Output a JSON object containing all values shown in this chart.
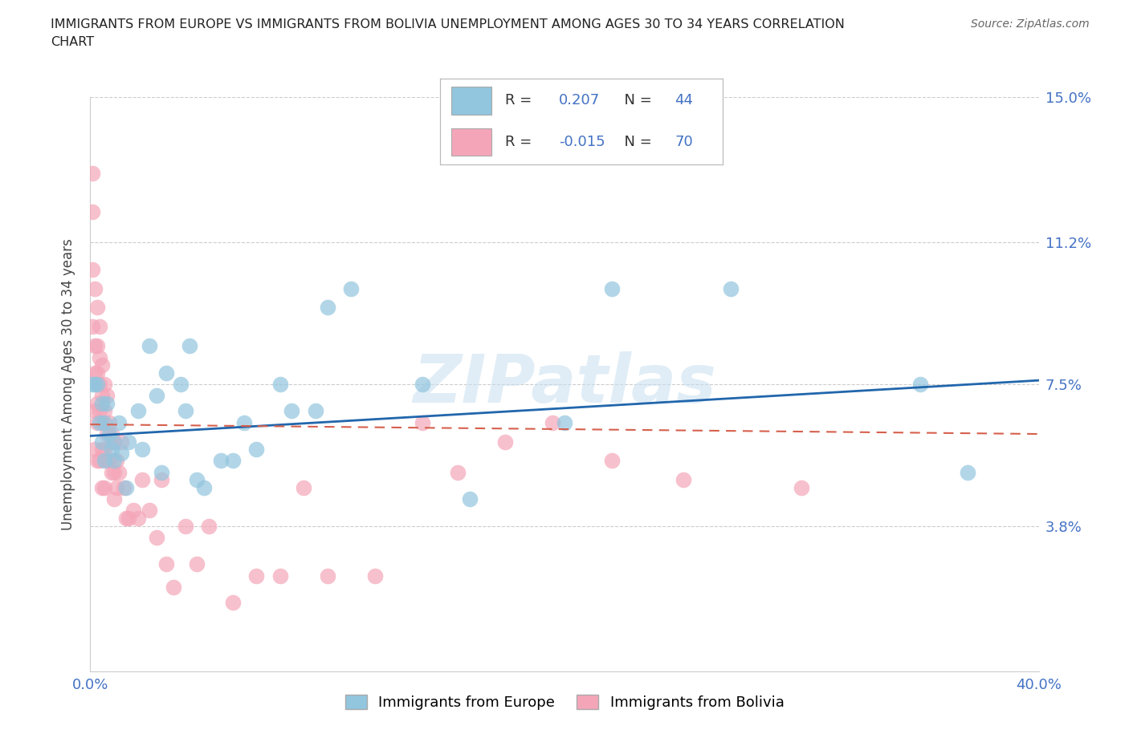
{
  "title_line1": "IMMIGRANTS FROM EUROPE VS IMMIGRANTS FROM BOLIVIA UNEMPLOYMENT AMONG AGES 30 TO 34 YEARS CORRELATION",
  "title_line2": "CHART",
  "source": "Source: ZipAtlas.com",
  "ylabel": "Unemployment Among Ages 30 to 34 years",
  "xlim": [
    0.0,
    0.4
  ],
  "ylim": [
    0.0,
    0.15
  ],
  "xticks": [
    0.0,
    0.08,
    0.16,
    0.24,
    0.32,
    0.4
  ],
  "xticklabels": [
    "0.0%",
    "",
    "",
    "",
    "",
    "40.0%"
  ],
  "ytick_positions": [
    0.038,
    0.075,
    0.112,
    0.15
  ],
  "ytick_labels": [
    "3.8%",
    "7.5%",
    "11.2%",
    "15.0%"
  ],
  "europe_R": "0.207",
  "europe_N": "44",
  "bolivia_R": "-0.015",
  "bolivia_N": "70",
  "europe_color": "#92c5de",
  "bolivia_color": "#f4a6b8",
  "europe_line_color": "#2166ac",
  "bolivia_line_color": "#d6604d",
  "watermark": "ZIPatlas",
  "europe_line_x": [
    0.0,
    0.4
  ],
  "europe_line_y": [
    0.0615,
    0.076
  ],
  "bolivia_line_x": [
    0.0,
    0.4
  ],
  "bolivia_line_y": [
    0.0645,
    0.062
  ],
  "europe_x": [
    0.001,
    0.002,
    0.003,
    0.004,
    0.005,
    0.005,
    0.006,
    0.006,
    0.007,
    0.008,
    0.009,
    0.01,
    0.01,
    0.012,
    0.013,
    0.015,
    0.016,
    0.02,
    0.022,
    0.025,
    0.028,
    0.03,
    0.032,
    0.038,
    0.04,
    0.042,
    0.045,
    0.048,
    0.055,
    0.06,
    0.065,
    0.07,
    0.08,
    0.085,
    0.095,
    0.1,
    0.11,
    0.14,
    0.16,
    0.2,
    0.22,
    0.27,
    0.35,
    0.37
  ],
  "europe_y": [
    0.075,
    0.075,
    0.075,
    0.065,
    0.07,
    0.06,
    0.055,
    0.065,
    0.07,
    0.062,
    0.058,
    0.055,
    0.06,
    0.065,
    0.057,
    0.048,
    0.06,
    0.068,
    0.058,
    0.085,
    0.072,
    0.052,
    0.078,
    0.075,
    0.068,
    0.085,
    0.05,
    0.048,
    0.055,
    0.055,
    0.065,
    0.058,
    0.075,
    0.068,
    0.068,
    0.095,
    0.1,
    0.075,
    0.045,
    0.065,
    0.1,
    0.1,
    0.075,
    0.052
  ],
  "bolivia_x": [
    0.001,
    0.001,
    0.001,
    0.001,
    0.002,
    0.002,
    0.002,
    0.002,
    0.002,
    0.003,
    0.003,
    0.003,
    0.003,
    0.003,
    0.003,
    0.004,
    0.004,
    0.004,
    0.004,
    0.004,
    0.005,
    0.005,
    0.005,
    0.005,
    0.005,
    0.006,
    0.006,
    0.006,
    0.006,
    0.007,
    0.007,
    0.007,
    0.008,
    0.008,
    0.009,
    0.009,
    0.01,
    0.01,
    0.01,
    0.011,
    0.011,
    0.012,
    0.013,
    0.014,
    0.015,
    0.016,
    0.018,
    0.02,
    0.022,
    0.025,
    0.028,
    0.03,
    0.032,
    0.035,
    0.04,
    0.045,
    0.05,
    0.06,
    0.07,
    0.08,
    0.09,
    0.1,
    0.12,
    0.14,
    0.155,
    0.175,
    0.195,
    0.22,
    0.25,
    0.3
  ],
  "bolivia_y": [
    0.13,
    0.12,
    0.105,
    0.09,
    0.1,
    0.085,
    0.078,
    0.068,
    0.058,
    0.095,
    0.085,
    0.078,
    0.07,
    0.065,
    0.055,
    0.09,
    0.082,
    0.075,
    0.068,
    0.055,
    0.08,
    0.072,
    0.065,
    0.058,
    0.048,
    0.075,
    0.068,
    0.058,
    0.048,
    0.072,
    0.062,
    0.055,
    0.065,
    0.055,
    0.062,
    0.052,
    0.06,
    0.052,
    0.045,
    0.055,
    0.048,
    0.052,
    0.06,
    0.048,
    0.04,
    0.04,
    0.042,
    0.04,
    0.05,
    0.042,
    0.035,
    0.05,
    0.028,
    0.022,
    0.038,
    0.028,
    0.038,
    0.018,
    0.025,
    0.025,
    0.048,
    0.025,
    0.025,
    0.065,
    0.052,
    0.06,
    0.065,
    0.055,
    0.05,
    0.048
  ]
}
